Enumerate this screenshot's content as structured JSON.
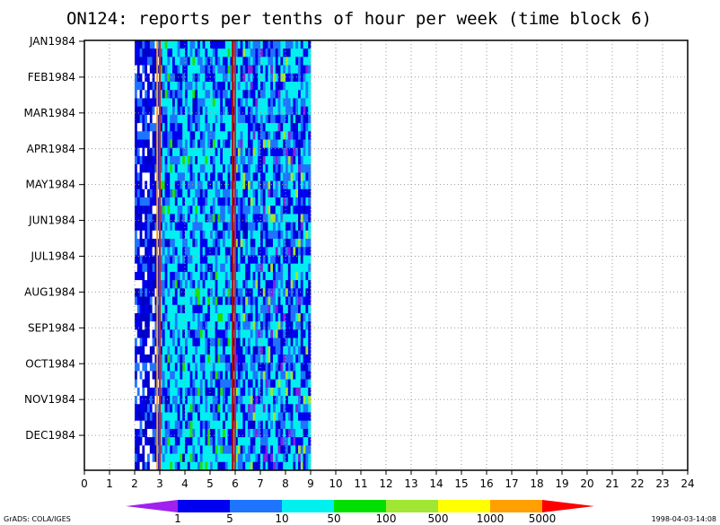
{
  "chart_data": {
    "type": "heatmap",
    "title": "ON124: reports per tenths of hour per week (time block 6)",
    "xlim": [
      0,
      24
    ],
    "x_ticks": [
      "0",
      "1",
      "2",
      "3",
      "4",
      "5",
      "6",
      "7",
      "8",
      "9",
      "10",
      "11",
      "12",
      "13",
      "14",
      "15",
      "16",
      "17",
      "18",
      "19",
      "20",
      "21",
      "22",
      "23",
      "24"
    ],
    "y_ticks": [
      "JAN1984",
      "FEB1984",
      "MAR1984",
      "APR1984",
      "MAY1984",
      "JUN1984",
      "JUL1984",
      "AUG1984",
      "SEP1984",
      "OCT1984",
      "NOV1984",
      "DEC1984"
    ],
    "weeks": 52,
    "data_x_range": [
      2.0,
      9.0
    ],
    "vertical_lines": [
      {
        "x": 2.9,
        "color": "#f0a020"
      },
      {
        "x": 3.0,
        "color": "#d22020"
      },
      {
        "x": 5.9,
        "color": "#a01010"
      },
      {
        "x": 6.0,
        "color": "#d22020"
      }
    ],
    "grid": true,
    "colorbar": {
      "labels": [
        "1",
        "5",
        "10",
        "50",
        "100",
        "500",
        "1000",
        "5000"
      ],
      "colors": [
        "#a020f0",
        "#0000f0",
        "#1e74ff",
        "#00f0f0",
        "#00e000",
        "#a0e632",
        "#ffff00",
        "#ffa000",
        "#ff0000"
      ]
    },
    "palette": {
      "white": "#ffffff",
      "navy": "#0000c8",
      "blue": "#0000f0",
      "mid_blue": "#1e74ff",
      "cyan": "#00f0f0",
      "purple": "#8020e0",
      "green": "#20e000",
      "yellowgreen": "#a0e632"
    }
  },
  "footer": {
    "left": "GrADS: COLA/IGES",
    "right": "1998-04-03-14:08"
  }
}
